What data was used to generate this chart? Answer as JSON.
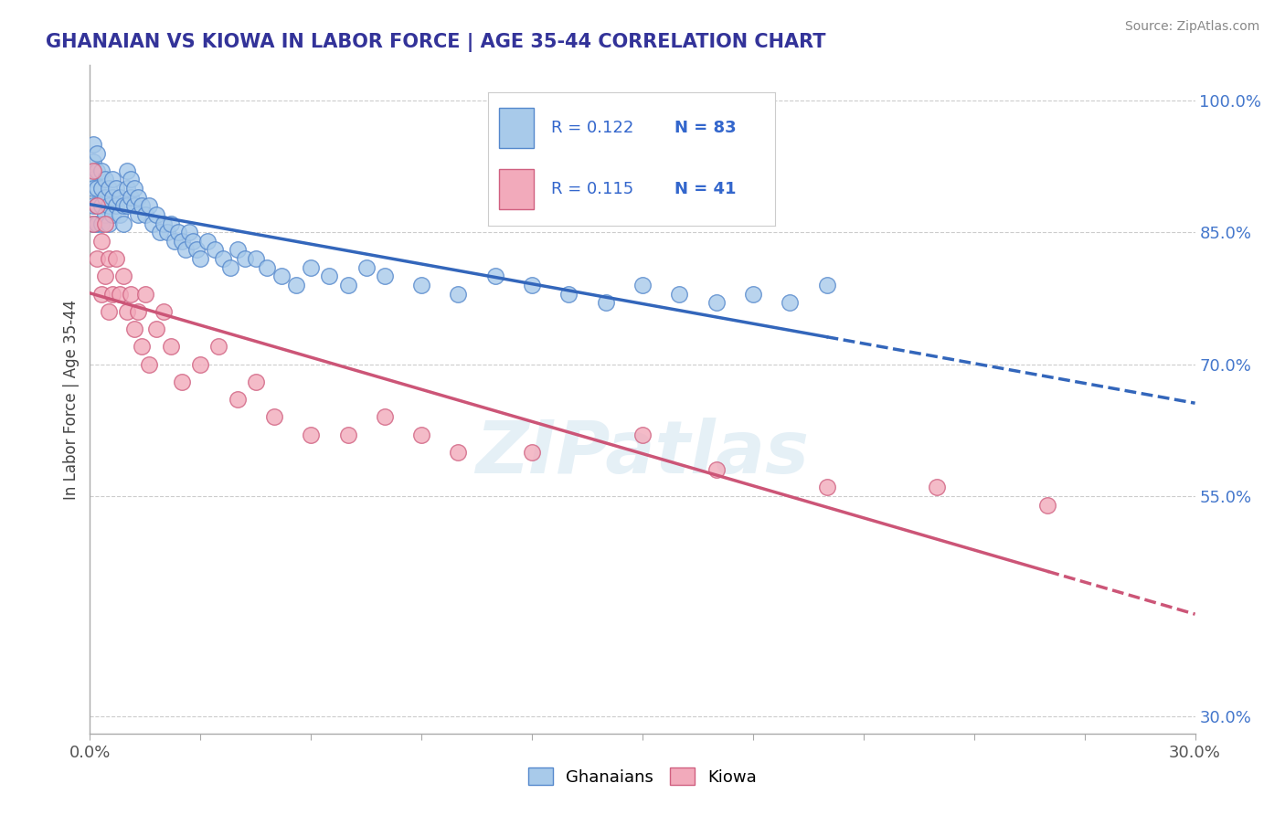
{
  "title": "GHANAIAN VS KIOWA IN LABOR FORCE | AGE 35-44 CORRELATION CHART",
  "source_text": "Source: ZipAtlas.com",
  "ylabel": "In Labor Force | Age 35-44",
  "xlim": [
    0.0,
    0.3
  ],
  "ylim": [
    0.28,
    1.04
  ],
  "xticks": [
    0.0,
    0.03,
    0.06,
    0.09,
    0.12,
    0.15,
    0.18,
    0.21,
    0.24,
    0.27,
    0.3
  ],
  "xticklabels_show": [
    "0.0%",
    "30.0%"
  ],
  "yticks_right": [
    0.3,
    0.55,
    0.7,
    0.85,
    1.0
  ],
  "yticklabels_right": [
    "30.0%",
    "55.0%",
    "70.0%",
    "85.0%",
    "100.0%"
  ],
  "ghanaian_color": "#A8CAEA",
  "kiowa_color": "#F2AABB",
  "ghanaian_edge_color": "#5588CC",
  "kiowa_edge_color": "#D06080",
  "ghanaian_line_color": "#3366BB",
  "kiowa_line_color": "#CC5577",
  "legend_R1": "R = 0.122",
  "legend_N1": "N = 83",
  "legend_R2": "R = 0.115",
  "legend_N2": "N = 41",
  "watermark": "ZIPatlas",
  "background_color": "#FFFFFF",
  "ghanaian_x": [
    0.001,
    0.001,
    0.001,
    0.001,
    0.001,
    0.001,
    0.002,
    0.002,
    0.002,
    0.002,
    0.002,
    0.003,
    0.003,
    0.003,
    0.003,
    0.004,
    0.004,
    0.004,
    0.005,
    0.005,
    0.005,
    0.006,
    0.006,
    0.006,
    0.007,
    0.007,
    0.008,
    0.008,
    0.009,
    0.009,
    0.01,
    0.01,
    0.01,
    0.011,
    0.011,
    0.012,
    0.012,
    0.013,
    0.013,
    0.014,
    0.015,
    0.016,
    0.017,
    0.018,
    0.019,
    0.02,
    0.021,
    0.022,
    0.023,
    0.024,
    0.025,
    0.026,
    0.027,
    0.028,
    0.029,
    0.03,
    0.032,
    0.034,
    0.036,
    0.038,
    0.04,
    0.042,
    0.045,
    0.048,
    0.052,
    0.056,
    0.06,
    0.065,
    0.07,
    0.075,
    0.08,
    0.09,
    0.1,
    0.11,
    0.12,
    0.13,
    0.14,
    0.15,
    0.16,
    0.17,
    0.18,
    0.19,
    0.2
  ],
  "ghanaian_y": [
    0.95,
    0.93,
    0.91,
    0.9,
    0.88,
    0.86,
    0.94,
    0.92,
    0.9,
    0.88,
    0.86,
    0.92,
    0.9,
    0.88,
    0.86,
    0.91,
    0.89,
    0.87,
    0.9,
    0.88,
    0.86,
    0.91,
    0.89,
    0.87,
    0.9,
    0.88,
    0.89,
    0.87,
    0.88,
    0.86,
    0.92,
    0.9,
    0.88,
    0.91,
    0.89,
    0.9,
    0.88,
    0.89,
    0.87,
    0.88,
    0.87,
    0.88,
    0.86,
    0.87,
    0.85,
    0.86,
    0.85,
    0.86,
    0.84,
    0.85,
    0.84,
    0.83,
    0.85,
    0.84,
    0.83,
    0.82,
    0.84,
    0.83,
    0.82,
    0.81,
    0.83,
    0.82,
    0.82,
    0.81,
    0.8,
    0.79,
    0.81,
    0.8,
    0.79,
    0.81,
    0.8,
    0.79,
    0.78,
    0.8,
    0.79,
    0.78,
    0.77,
    0.79,
    0.78,
    0.77,
    0.78,
    0.77,
    0.79
  ],
  "kiowa_x": [
    0.001,
    0.001,
    0.002,
    0.002,
    0.003,
    0.003,
    0.004,
    0.004,
    0.005,
    0.005,
    0.006,
    0.007,
    0.008,
    0.009,
    0.01,
    0.011,
    0.012,
    0.013,
    0.014,
    0.015,
    0.016,
    0.018,
    0.02,
    0.022,
    0.025,
    0.03,
    0.035,
    0.04,
    0.045,
    0.05,
    0.06,
    0.07,
    0.08,
    0.09,
    0.1,
    0.12,
    0.15,
    0.17,
    0.2,
    0.23,
    0.26
  ],
  "kiowa_y": [
    0.92,
    0.86,
    0.88,
    0.82,
    0.84,
    0.78,
    0.86,
    0.8,
    0.82,
    0.76,
    0.78,
    0.82,
    0.78,
    0.8,
    0.76,
    0.78,
    0.74,
    0.76,
    0.72,
    0.78,
    0.7,
    0.74,
    0.76,
    0.72,
    0.68,
    0.7,
    0.72,
    0.66,
    0.68,
    0.64,
    0.62,
    0.62,
    0.64,
    0.62,
    0.6,
    0.6,
    0.62,
    0.58,
    0.56,
    0.56,
    0.54
  ]
}
